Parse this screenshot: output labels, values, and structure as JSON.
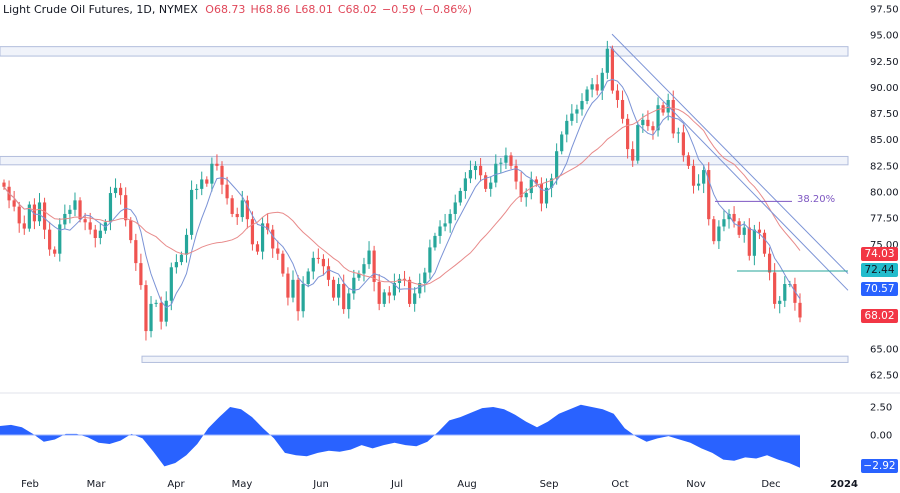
{
  "header": {
    "symbol": "Light Crude Oil Futures, 1D, NYMEX",
    "open": "O68.73",
    "high": "H68.86",
    "low": "L68.01",
    "close": "C68.02",
    "change": "−0.59 (−0.86%)"
  },
  "colors": {
    "up": "#26a69a",
    "down": "#ef5350",
    "ma_fast": "#7b93d6",
    "ma_slow": "#e88b8b",
    "zone": "#b2bedc",
    "trend": "#7b93d6",
    "support": "#26a69a",
    "oscillator": "#2962ff"
  },
  "price_axis": {
    "labels": [
      "97.50",
      "95.00",
      "92.50",
      "90.00",
      "87.50",
      "85.00",
      "82.50",
      "80.00",
      "77.50",
      "75.00",
      "65.00",
      "62.50"
    ]
  },
  "badges": [
    {
      "value": "74.03",
      "color": "#f23645"
    },
    {
      "value": "72.44",
      "color": "#22bccc"
    },
    {
      "value": "70.57",
      "color": "#2962ff"
    },
    {
      "value": "68.02",
      "color": "#f23645"
    }
  ],
  "fib_label": "38.20%",
  "osc_axis": {
    "labels": [
      "2.50",
      "0.00"
    ],
    "badge": "−2.92"
  },
  "time_axis": {
    "labels": [
      "Feb",
      "Mar",
      "Apr",
      "May",
      "Jun",
      "Jul",
      "Aug",
      "Sep",
      "Oct",
      "Nov",
      "Dec",
      "2024"
    ]
  },
  "chart_data": {
    "type": "candlestick",
    "title": "Light Crude Oil Futures, 1D, NYMEX",
    "ylim": [
      61.5,
      98.5
    ],
    "x_months": [
      "Feb",
      "Mar",
      "Apr",
      "May",
      "Jun",
      "Jul",
      "Aug",
      "Sep",
      "Oct",
      "Nov",
      "Dec",
      "2024"
    ],
    "closes": [
      80.5,
      79.2,
      78.6,
      77.0,
      76.5,
      78.8,
      77.2,
      79.0,
      76.4,
      74.5,
      74.1,
      76.9,
      77.9,
      78.3,
      79.2,
      77.4,
      77.1,
      76.4,
      75.6,
      76.3,
      77.1,
      79.9,
      80.4,
      79.7,
      77.3,
      75.4,
      73.2,
      71.1,
      66.7,
      69.3,
      69.4,
      67.6,
      69.6,
      72.8,
      73.3,
      74.0,
      75.9,
      80.2,
      80.3,
      81.2,
      80.8,
      82.7,
      82.5,
      80.7,
      79.4,
      77.9,
      77.6,
      79.2,
      77.4,
      75.0,
      74.3,
      77.0,
      76.4,
      74.6,
      74.1,
      72.2,
      69.9,
      71.6,
      68.6,
      71.2,
      72.4,
      73.7,
      73.6,
      72.9,
      71.6,
      69.9,
      71.2,
      68.8,
      70.3,
      71.8,
      72.2,
      73.1,
      74.4,
      71.4,
      69.3,
      70.4,
      70.1,
      71.3,
      71.7,
      71.6,
      69.3,
      70.3,
      71.3,
      72.3,
      74.7,
      75.8,
      76.7,
      77.0,
      77.9,
      79.0,
      80.1,
      81.3,
      82.1,
      82.5,
      81.6,
      80.3,
      80.9,
      82.7,
      82.8,
      83.5,
      82.5,
      81.0,
      79.5,
      79.9,
      81.2,
      80.8,
      78.9,
      80.4,
      81.3,
      83.9,
      85.5,
      86.8,
      87.5,
      87.9,
      88.7,
      89.8,
      90.3,
      89.7,
      91.4,
      93.7,
      89.7,
      88.8,
      87.0,
      84.1,
      83.0,
      86.4,
      86.9,
      86.3,
      85.9,
      88.3,
      87.6,
      88.8,
      85.6,
      85.7,
      83.5,
      82.5,
      80.6,
      80.8,
      82.1,
      77.4,
      75.3,
      76.7,
      77.4,
      77.9,
      77.2,
      75.9,
      76.6,
      73.9,
      76.4,
      76.1,
      74.1,
      72.3,
      69.3,
      69.6,
      71.2,
      71.2,
      69.4,
      68.0
    ],
    "series_overlays": [
      "fast moving average (blue)",
      "slow moving average (red)"
    ],
    "horizontal_zones": [
      [
        93.0,
        93.9
      ],
      [
        82.6,
        83.4
      ],
      [
        63.7,
        64.3
      ]
    ],
    "support_line": 72.44,
    "fib_38_2": 79.1,
    "trendline_channel": {
      "from_peak": 95.0,
      "to_level": [
        72.0,
        70.6
      ]
    },
    "last_values": {
      "ma_slow": 74.03,
      "support": 72.44,
      "trend": 70.57,
      "close": 68.02
    },
    "oscillator": {
      "ylim": [
        -3.2,
        3.0
      ],
      "values": [
        0.8,
        0.9,
        0.7,
        0.1,
        -0.6,
        -0.4,
        0.1,
        0.1,
        -0.2,
        -0.7,
        -0.8,
        -0.5,
        0.1,
        -0.3,
        -1.5,
        -2.8,
        -2.5,
        -1.8,
        -0.8,
        0.6,
        1.6,
        2.5,
        2.3,
        1.6,
        0.6,
        -0.3,
        -1.6,
        -1.8,
        -1.9,
        -1.6,
        -1.4,
        -1.5,
        -1.3,
        -0.9,
        -1.2,
        -0.9,
        -0.7,
        -0.9,
        -1.0,
        -0.6,
        0.3,
        1.3,
        1.6,
        2.0,
        2.4,
        2.5,
        2.3,
        1.8,
        1.2,
        0.7,
        1.2,
        1.9,
        2.3,
        2.7,
        2.5,
        2.3,
        1.9,
        0.6,
        -0.1,
        -0.6,
        -0.3,
        -0.1,
        -0.4,
        -0.7,
        -1.2,
        -1.6,
        -2.2,
        -2.3,
        -2.0,
        -2.1,
        -1.8,
        -2.2,
        -2.5,
        -2.92
      ],
      "zero_line": 0.0,
      "last": -2.92
    }
  }
}
